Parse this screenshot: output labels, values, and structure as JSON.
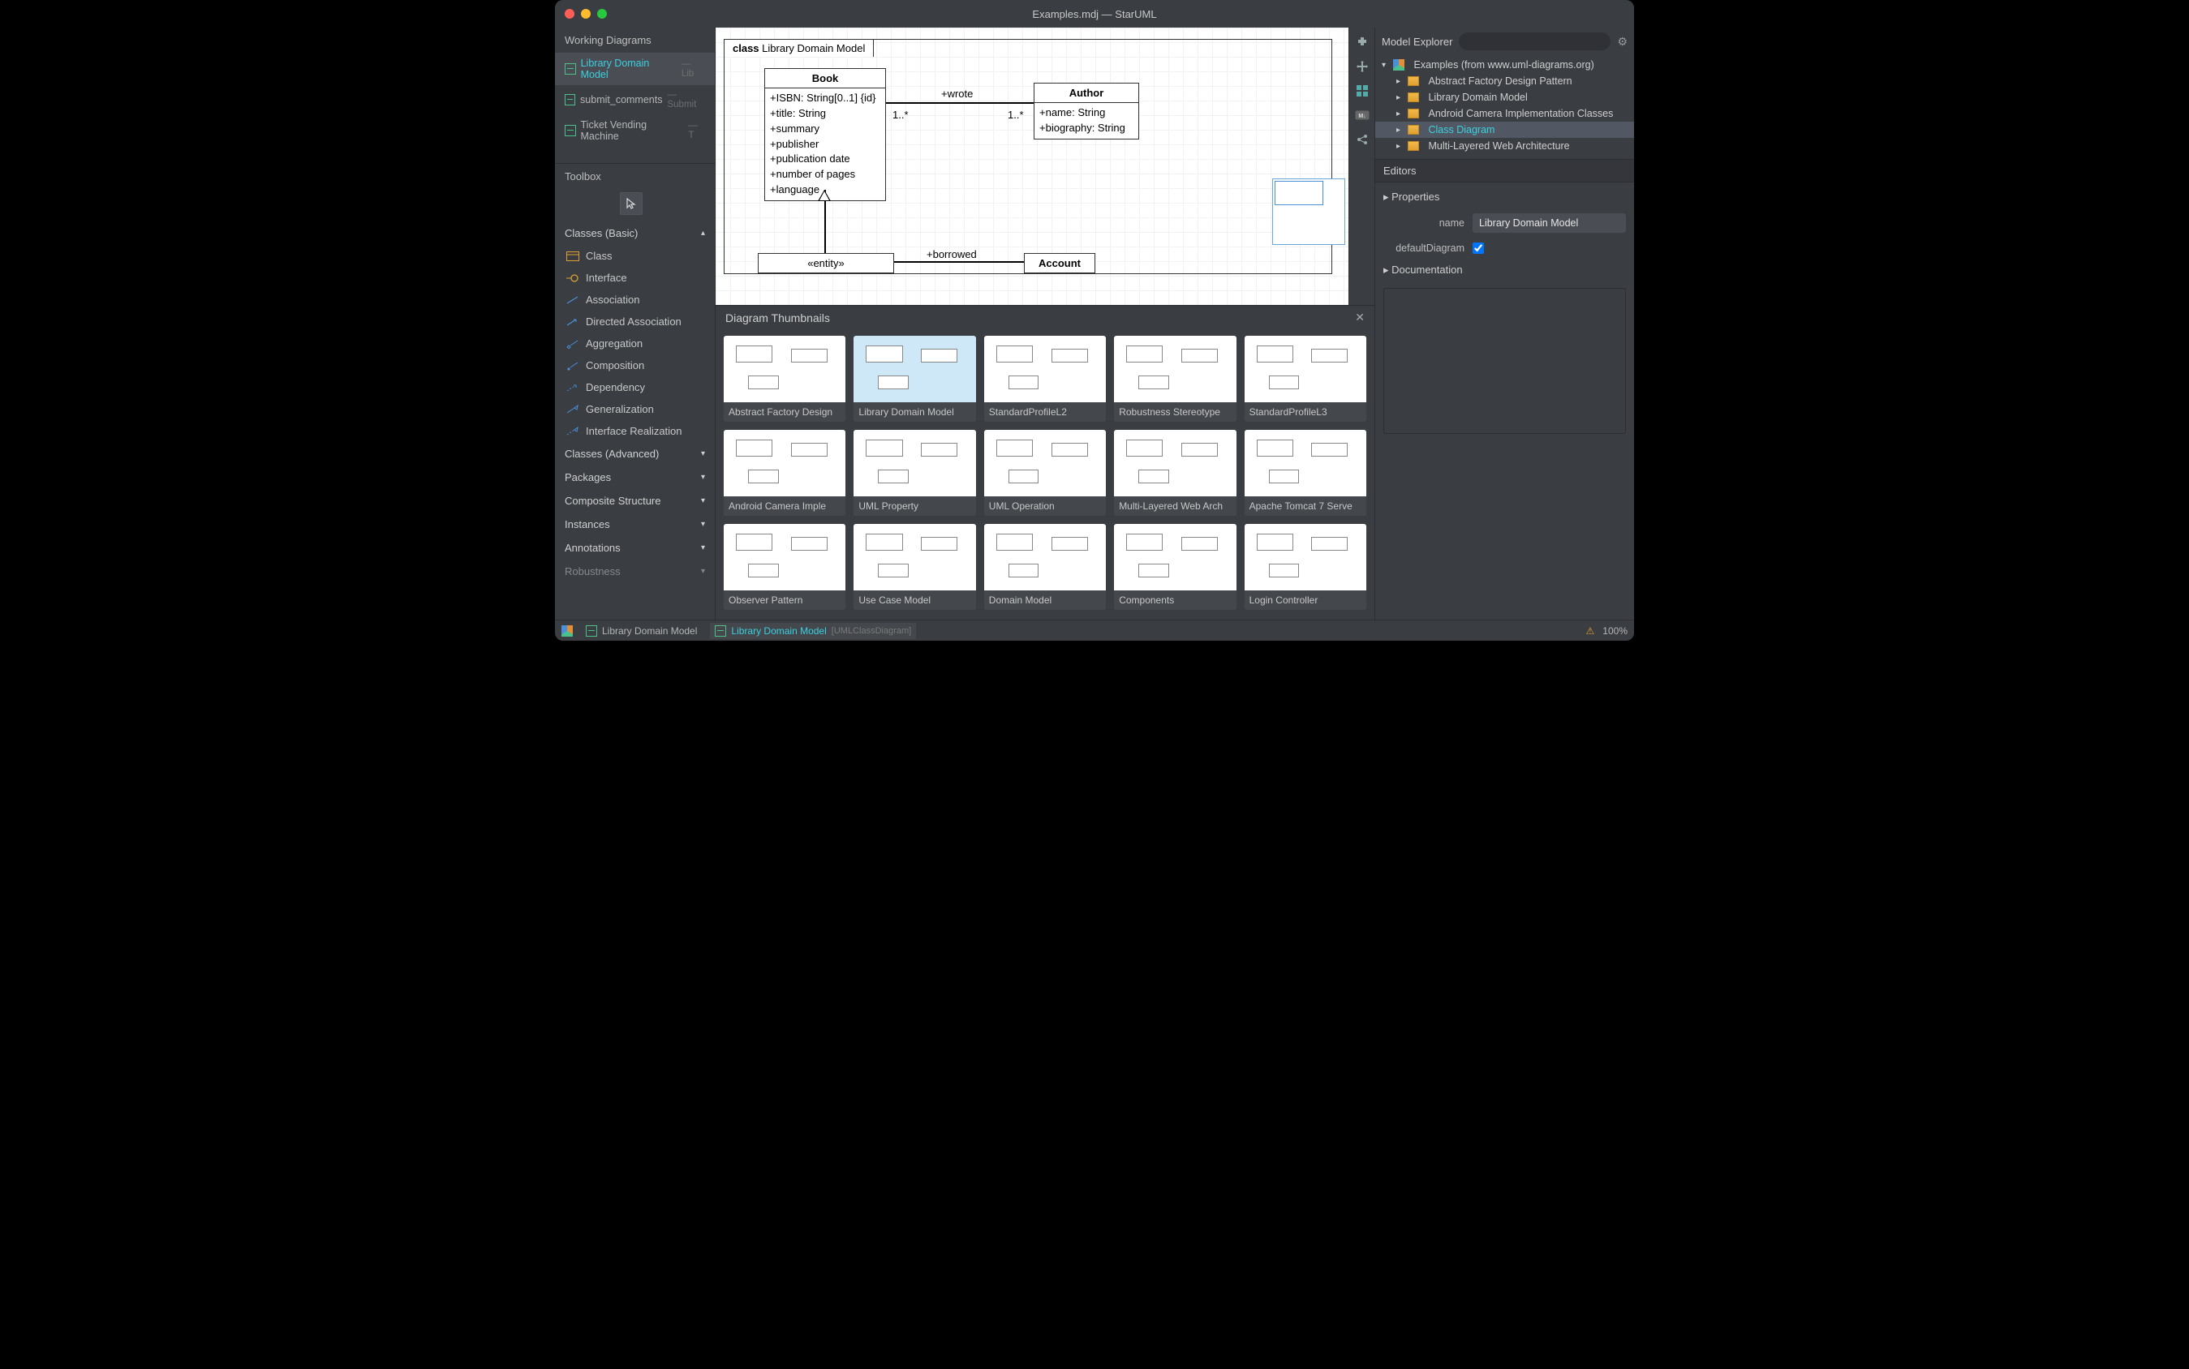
{
  "window": {
    "title": "Examples.mdj — StarUML"
  },
  "workingDiagrams": {
    "title": "Working Diagrams",
    "items": [
      {
        "label": "Library Domain Model",
        "hint": "— Lib",
        "active": true
      },
      {
        "label": "submit_comments",
        "hint": "— Submit",
        "active": false
      },
      {
        "label": "Ticket Vending Machine",
        "hint": "— T",
        "active": false
      }
    ]
  },
  "toolbox": {
    "title": "Toolbox",
    "sections": {
      "basic": {
        "label": "Classes (Basic)",
        "open": true,
        "items": [
          "Class",
          "Interface",
          "Association",
          "Directed Association",
          "Aggregation",
          "Composition",
          "Dependency",
          "Generalization",
          "Interface Realization"
        ]
      },
      "advanced": {
        "label": "Classes (Advanced)"
      },
      "packages": {
        "label": "Packages"
      },
      "composite": {
        "label": "Composite Structure"
      },
      "instances": {
        "label": "Instances"
      },
      "annotations": {
        "label": "Annotations"
      },
      "robustness": {
        "label": "Robustness"
      }
    }
  },
  "canvas": {
    "frameLabelPrefix": "class",
    "frameLabel": "Library Domain Model",
    "book": {
      "name": "Book",
      "attrs": [
        "+ISBN: String[0..1] {id}",
        "+title: String",
        "+summary",
        "+publisher",
        "+publication date",
        "+number of pages",
        "+language"
      ]
    },
    "author": {
      "name": "Author",
      "attrs": [
        "+name: String",
        "+biography: String"
      ]
    },
    "entity": {
      "stereo": "«entity»"
    },
    "account": {
      "name": "Account"
    },
    "wrote": "+wrote",
    "borrowed": "+borrowed",
    "mult1": "1..*",
    "mult2": "1..*"
  },
  "thumbnails": {
    "title": "Diagram Thumbnails",
    "items": [
      "Abstract Factory Design",
      "Library Domain Model",
      "StandardProfileL2",
      "Robustness Stereotype",
      "StandardProfileL3",
      "Android Camera Imple",
      "UML Property",
      "UML Operation",
      "Multi-Layered Web Arch",
      "Apache Tomcat 7 Serve",
      "Observer Pattern",
      "Use Case Model",
      "Domain Model",
      "Components",
      "Login Controller"
    ],
    "selectedIndex": 1
  },
  "explorer": {
    "title": "Model Explorer",
    "searchPlaceholder": "",
    "root": "Examples (from www.uml-diagrams.org)",
    "children": [
      "Abstract Factory Design Pattern",
      "Library Domain Model",
      "Android Camera Implementation Classes",
      "Class Diagram",
      "Multi-Layered Web Architecture"
    ],
    "selectedIndex": 3
  },
  "editors": {
    "title": "Editors"
  },
  "properties": {
    "title": "Properties",
    "name_label": "name",
    "name_value": "Library Domain Model",
    "default_label": "defaultDiagram",
    "default_checked": true
  },
  "documentation": {
    "title": "Documentation"
  },
  "status": {
    "crumb1": "Library Domain Model",
    "crumb2": "Library Domain Model",
    "crumb2_type": "[UMLClassDiagram]",
    "zoom": "100%"
  }
}
